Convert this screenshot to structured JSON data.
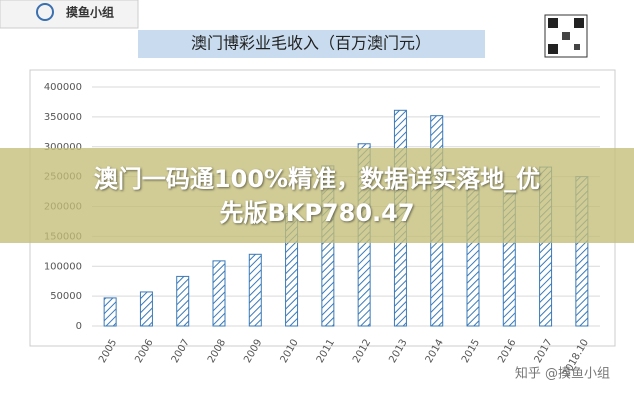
{
  "logo": "摸鱼小组",
  "banner": [
    "澳门一码通100%精准，数据详实落地_优",
    "先版BKP780.47"
  ],
  "watermark": "知乎 @摸鱼小组",
  "chart_data": {
    "type": "bar",
    "title": "澳门博彩业毛收入（百万澳门元）",
    "categories": [
      "2005",
      "2006",
      "2007",
      "2008",
      "2009",
      "2010",
      "2011",
      "2012",
      "2013",
      "2014",
      "2015",
      "2016",
      "2017",
      "2018.10"
    ],
    "values": [
      47000,
      57000,
      83000,
      109000,
      120000,
      188000,
      268000,
      305000,
      361000,
      352000,
      231000,
      224000,
      266000,
      250000
    ],
    "color": "#3a7ab8",
    "ylim": [
      0,
      400000
    ],
    "yticks": [
      0,
      50000,
      100000,
      150000,
      200000,
      250000,
      300000,
      350000,
      400000
    ],
    "grid": true
  }
}
